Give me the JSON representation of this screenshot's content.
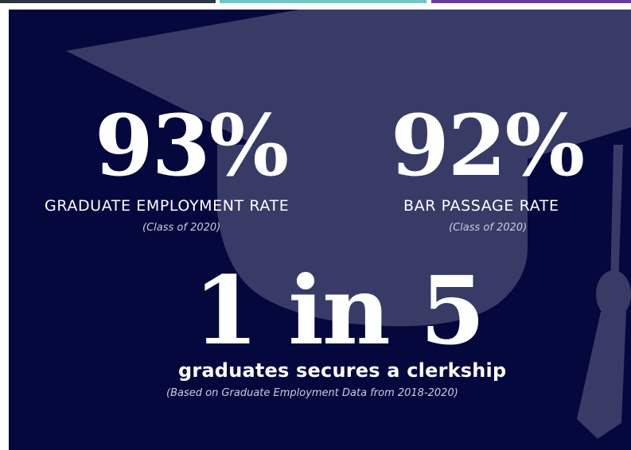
{
  "colors": {
    "background": "#05083d",
    "cap": "#383b66",
    "text": "#ffffff",
    "note_text": "#c9cbe0",
    "top_bar_1": "#2a3742",
    "top_bar_2": "#6cc9c4",
    "top_bar_3": "#6a3d97"
  },
  "icons": {
    "background_art": "graduation-cap-icon"
  },
  "stats": {
    "employment": {
      "value": "93%",
      "label": "GRADUATE EMPLOYMENT RATE",
      "note": "(Class of 2020)"
    },
    "bar_passage": {
      "value": "92%",
      "label": "BAR PASSAGE RATE",
      "note": "(Class of 2020)"
    },
    "clerkship": {
      "value": "1 in 5",
      "label": "graduates secures a clerkship",
      "note": "(Based on Graduate Employment Data from 2018-2020)"
    }
  }
}
